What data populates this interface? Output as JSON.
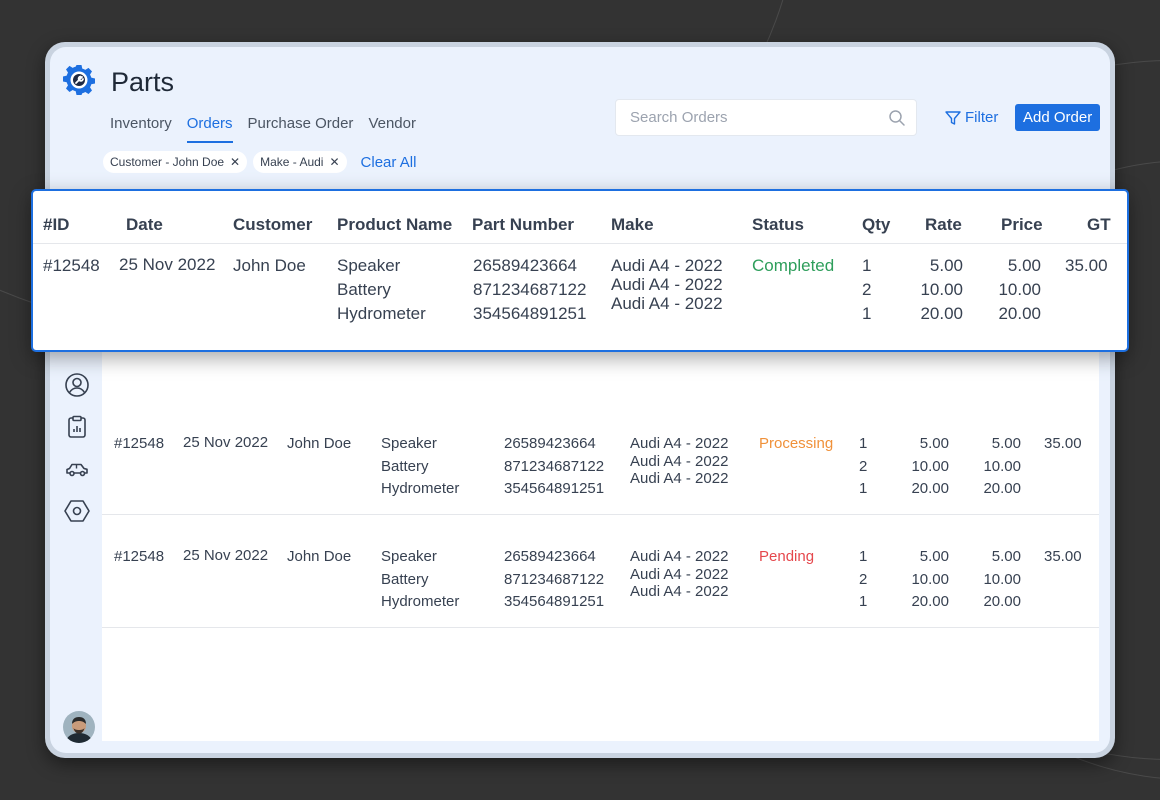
{
  "app": {
    "title": "Parts"
  },
  "tabs": [
    {
      "label": "Inventory",
      "active": false
    },
    {
      "label": "Orders",
      "active": true
    },
    {
      "label": "Purchase Order",
      "active": false
    },
    {
      "label": "Vendor",
      "active": false
    }
  ],
  "search": {
    "placeholder": "Search Orders",
    "value": ""
  },
  "toolbar": {
    "filter_label": "Filter",
    "add_label": "Add Order"
  },
  "filters": {
    "chips": [
      "Customer - John Doe",
      "Make - Audi"
    ],
    "clear_label": "Clear All"
  },
  "table": {
    "headers": [
      "#ID",
      "Date",
      "Customer",
      "Product Name",
      "Part Number",
      "Make",
      "Status",
      "Qty",
      "Rate",
      "Price",
      "GT"
    ],
    "rows": [
      {
        "id": "#12548",
        "date": "25 Nov 2022",
        "customer": "John Doe",
        "products": [
          "Speaker",
          "Battery",
          "Hydrometer"
        ],
        "parts": [
          "26589423664",
          "871234687122",
          "354564891251"
        ],
        "makes": [
          "Audi A4 - 2022",
          "Audi A4 - 2022",
          "Audi A4 - 2022"
        ],
        "status": "Completed",
        "qty": [
          "1",
          "2",
          "1"
        ],
        "rate": [
          "5.00",
          "10.00",
          "20.00"
        ],
        "price": [
          "5.00",
          "10.00",
          "20.00"
        ],
        "gt": "35.00"
      },
      {
        "id": "#12548",
        "date": "25 Nov 2022",
        "customer": "John Doe",
        "products": [
          "Speaker",
          "Battery",
          "Hydrometer"
        ],
        "parts": [
          "26589423664",
          "871234687122",
          "354564891251"
        ],
        "makes": [
          "Audi A4 - 2022",
          "Audi A4 - 2022",
          "Audi A4 - 2022"
        ],
        "status": "Processing",
        "qty": [
          "1",
          "2",
          "1"
        ],
        "rate": [
          "5.00",
          "10.00",
          "20.00"
        ],
        "price": [
          "5.00",
          "10.00",
          "20.00"
        ],
        "gt": "35.00"
      },
      {
        "id": "#12548",
        "date": "25 Nov 2022",
        "customer": "John Doe",
        "products": [
          "Speaker",
          "Battery",
          "Hydrometer"
        ],
        "parts": [
          "26589423664",
          "871234687122",
          "354564891251"
        ],
        "makes": [
          "Audi A4 - 2022",
          "Audi A4 - 2022",
          "Audi A4 - 2022"
        ],
        "status": "Pending",
        "qty": [
          "1",
          "2",
          "1"
        ],
        "rate": [
          "5.00",
          "10.00",
          "20.00"
        ],
        "price": [
          "5.00",
          "10.00",
          "20.00"
        ],
        "gt": "35.00"
      }
    ]
  },
  "sidebar": {
    "icons": [
      "user-icon",
      "clipboard-icon",
      "car-icon",
      "hexagon-nut-icon"
    ]
  },
  "colors": {
    "accent": "#1d6fe0",
    "completed": "#2e9e5b",
    "processing": "#f0913a",
    "pending": "#e5484d"
  }
}
